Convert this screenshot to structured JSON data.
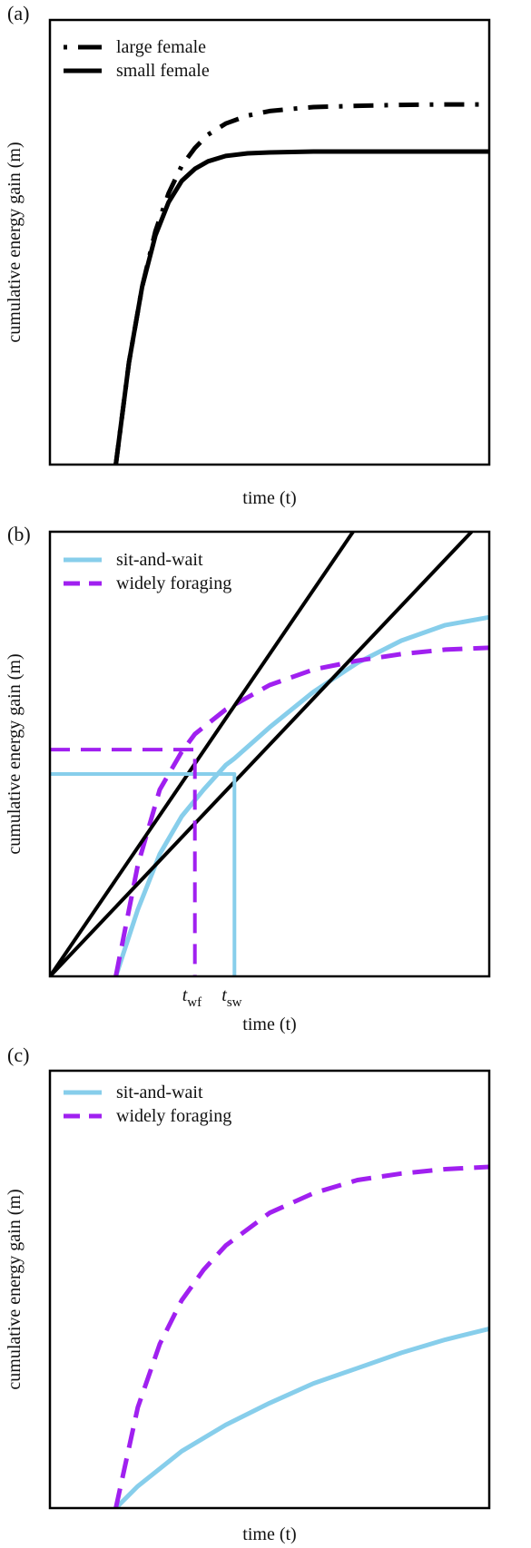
{
  "chart_data": [
    {
      "type": "line",
      "panel_label": "(a)",
      "xlabel": "time (t)",
      "ylabel": "cumulative energy gain (m)",
      "xlim": [
        0,
        10
      ],
      "ylim": [
        0,
        10
      ],
      "grid": false,
      "legend_position": "top-left",
      "series": [
        {
          "name": "large female",
          "color": "#000000",
          "dash": "dash-dot",
          "x": [
            1.5,
            1.8,
            2.1,
            2.4,
            2.7,
            3.0,
            3.3,
            3.6,
            4.0,
            4.5,
            5.0,
            5.5,
            6.0,
            7.0,
            8.0,
            9.0,
            11.6
          ],
          "y": [
            0.0,
            2.3,
            4.0,
            5.25,
            6.1,
            6.72,
            7.12,
            7.42,
            7.67,
            7.85,
            7.95,
            8.0,
            8.04,
            8.07,
            8.09,
            8.1,
            8.1
          ]
        },
        {
          "name": "small female",
          "color": "#000000",
          "dash": "solid",
          "x": [
            1.5,
            1.8,
            2.1,
            2.4,
            2.7,
            3.0,
            3.3,
            3.6,
            4.0,
            4.5,
            5.0,
            6.0,
            7.0,
            8.0,
            9.0,
            11.6
          ],
          "y": [
            0.0,
            2.3,
            4.0,
            5.15,
            5.9,
            6.38,
            6.65,
            6.82,
            6.94,
            7.0,
            7.02,
            7.04,
            7.04,
            7.04,
            7.04,
            7.04
          ]
        }
      ]
    },
    {
      "type": "line",
      "panel_label": "(b)",
      "xlabel": "time (t)",
      "ylabel": "cumulative energy gain (m)",
      "xlim": [
        0,
        10
      ],
      "ylim": [
        0,
        10
      ],
      "grid": false,
      "legend_position": "top-left",
      "tick_labels": [
        {
          "main": "t",
          "sub": "wf",
          "x": 3.3
        },
        {
          "main": "t",
          "sub": "sw",
          "x": 4.2
        }
      ],
      "series": [
        {
          "name": "sit-and-wait",
          "color": "#87ceeb",
          "dash": "solid",
          "x": [
            1.5,
            2.0,
            2.5,
            3.0,
            3.5,
            4.0,
            4.2,
            5.0,
            6.0,
            7.0,
            8.0,
            9.0,
            10.7
          ],
          "y": [
            0.0,
            1.5,
            2.75,
            3.6,
            4.2,
            4.75,
            4.9,
            5.6,
            6.4,
            7.05,
            7.55,
            7.9,
            8.2
          ]
        },
        {
          "name": "widely foraging",
          "color": "#a020f0",
          "dash": "dash",
          "x": [
            1.5,
            2.0,
            2.5,
            3.0,
            3.3,
            4.0,
            5.0,
            6.0,
            7.0,
            8.0,
            9.0,
            10.7
          ],
          "y": [
            0.0,
            2.5,
            4.2,
            5.05,
            5.45,
            6.0,
            6.55,
            6.9,
            7.1,
            7.25,
            7.35,
            7.42
          ]
        },
        {
          "name": "",
          "color": "#000000",
          "dash": "solid",
          "x": [
            0,
            6.9
          ],
          "y": [
            0,
            10
          ]
        },
        {
          "name": "",
          "color": "#000000",
          "dash": "solid",
          "x": [
            0,
            9.6
          ],
          "y": [
            0,
            10
          ]
        },
        {
          "name": "",
          "color": "#87ceeb",
          "dash": "solid",
          "x": [
            0,
            4.2,
            4.2
          ],
          "y": [
            4.55,
            4.55,
            0
          ]
        },
        {
          "name": "",
          "color": "#a020f0",
          "dash": "dash",
          "x": [
            0,
            3.3,
            3.3
          ],
          "y": [
            5.1,
            5.1,
            0
          ]
        }
      ]
    },
    {
      "type": "line",
      "panel_label": "(c)",
      "xlabel": "time (t)",
      "ylabel": "cumulative energy gain (m)",
      "xlim": [
        0,
        10
      ],
      "ylim": [
        0,
        10
      ],
      "grid": false,
      "legend_position": "top-left",
      "series": [
        {
          "name": "sit-and-wait",
          "color": "#87ceeb",
          "dash": "solid",
          "x": [
            1.5,
            2.0,
            3.0,
            4.0,
            5.0,
            6.0,
            7.0,
            8.0,
            9.0,
            10.0,
            11.6
          ],
          "y": [
            0.0,
            0.5,
            1.3,
            1.9,
            2.4,
            2.85,
            3.2,
            3.55,
            3.85,
            4.1,
            4.55
          ]
        },
        {
          "name": "widely foraging",
          "color": "#a020f0",
          "dash": "dash",
          "x": [
            1.5,
            2.0,
            2.5,
            3.0,
            3.5,
            4.0,
            5.0,
            6.0,
            7.0,
            8.0,
            9.0,
            10.0,
            11.6
          ],
          "y": [
            0.0,
            2.3,
            3.75,
            4.75,
            5.45,
            6.0,
            6.75,
            7.2,
            7.5,
            7.65,
            7.75,
            7.8,
            7.85
          ]
        }
      ]
    }
  ]
}
